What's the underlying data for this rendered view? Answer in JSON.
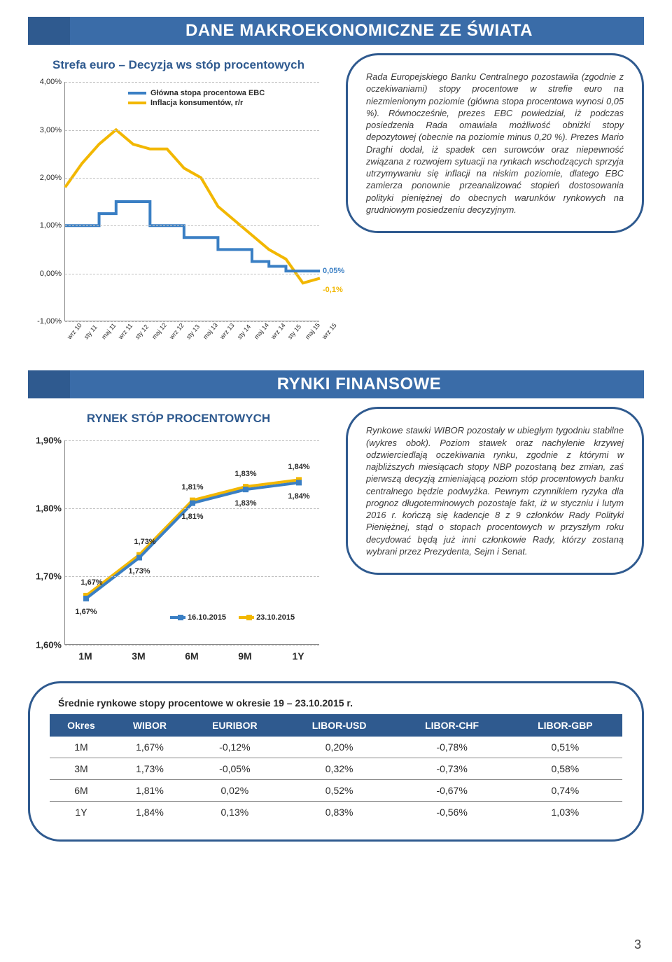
{
  "header1": "DANE MAKROEKONOMICZNE ZE ŚWIATA",
  "chart1_title": "Strefa euro – Decyzja ws stóp procentowych",
  "chart1": {
    "yticks": [
      "4,00%",
      "3,00%",
      "2,00%",
      "1,00%",
      "0,00%",
      "-1,00%"
    ],
    "ymin": -1,
    "ymax": 4,
    "xticks": [
      "wrz 10",
      "sty 11",
      "maj 11",
      "wrz 11",
      "sty 12",
      "maj 12",
      "wrz 12",
      "sty 13",
      "maj 13",
      "wrz 13",
      "sty 14",
      "maj 14",
      "wrz 14",
      "sty 15",
      "maj 15",
      "wrz 15"
    ],
    "legend": [
      {
        "label": "Główna stopa procentowa EBC",
        "color": "#3a7fc4"
      },
      {
        "label": "Inflacja konsumentów, r/r",
        "color": "#f2b700"
      }
    ],
    "series_blue": [
      1.0,
      1.0,
      1.25,
      1.5,
      1.5,
      1.0,
      1.0,
      0.75,
      0.75,
      0.5,
      0.5,
      0.25,
      0.15,
      0.05,
      0.05,
      0.05
    ],
    "series_yellow": [
      1.8,
      2.3,
      2.7,
      3.0,
      2.7,
      2.6,
      2.6,
      2.2,
      2.0,
      1.4,
      1.1,
      0.8,
      0.5,
      0.3,
      -0.2,
      -0.1
    ],
    "end_labels": [
      {
        "text": "0,05%",
        "y": 0.15,
        "color": "#3a7fc4"
      },
      {
        "text": "-0,1%",
        "y": -0.25,
        "color": "#f2b700"
      }
    ],
    "line_color_blue": "#3a7fc4",
    "line_color_yellow": "#f2b700"
  },
  "bubble1": "Rada Europejskiego Banku Centralnego pozostawiła (zgodnie z oczekiwaniami) stopy procentowe w strefie euro na niezmienionym poziomie (główna stopa procentowa wynosi 0,05 %). Równocześnie, prezes EBC powiedział, iż podczas posiedzenia Rada omawiała możliwość obniżki stopy depozytowej (obecnie na poziomie minus 0,20 %). Prezes Mario Draghi dodał, iż spadek cen surowców oraz niepewność związana z rozwojem sytuacji na rynkach wschodzących sprzyja utrzymywaniu się inflacji na niskim poziomie, dlatego EBC zamierza ponownie przeanalizować stopień dostosowania polityki pieniężnej do obecnych warunków rynkowych na grudniowym posiedzeniu decyzyjnym.",
  "header2": "RYNKI FINANSOWE",
  "chart2_title": "RYNEK STÓP PROCENTOWYCH",
  "chart2": {
    "yticks": [
      "1,90%",
      "1,80%",
      "1,70%",
      "1,60%"
    ],
    "ymin": 1.6,
    "ymax": 1.9,
    "xticks": [
      "1M",
      "3M",
      "6M",
      "9M",
      "1Y"
    ],
    "legend": [
      {
        "label": "16.10.2015",
        "color": "#3a7fc4"
      },
      {
        "label": "23.10.2015",
        "color": "#f2b700"
      }
    ],
    "blue": [
      1.67,
      1.73,
      1.81,
      1.83,
      1.84
    ],
    "yellow": [
      1.67,
      1.73,
      1.81,
      1.83,
      1.84
    ],
    "labels_top": [
      "",
      "",
      "1,81%",
      "1,83%",
      "1,84%"
    ],
    "labels_bottom": [
      "1,67%",
      "1,73%",
      "1,81%",
      "1,83%",
      "1,84%"
    ],
    "extra_top": {
      "text": "1,67%",
      "i": 0
    },
    "extra_top2": {
      "text": "1,73%",
      "i": 1
    },
    "line_color_blue": "#3a7fc4",
    "line_color_yellow": "#f2b700",
    "marker_blue": "#3a7fc4",
    "marker_yellow": "#f2b700"
  },
  "bubble2": "Rynkowe stawki WIBOR pozostały w ubiegłym tygodniu stabilne (wykres obok). Poziom stawek oraz nachylenie krzywej odzwierciedlają oczekiwania rynku, zgodnie z którymi w najbliższych miesiącach stopy NBP pozostaną bez zmian, zaś pierwszą decyzją zmieniającą poziom stóp procentowych banku centralnego będzie podwyżka. Pewnym czynnikiem ryzyka dla prognoz długoterminowych pozostaje fakt, iż w styczniu i lutym 2016 r. kończą się kadencje 8 z 9 członków Rady Polityki Pieniężnej, stąd o stopach procentowych w przyszłym roku decydować będą już inni członkowie Rady, którzy zostaną wybrani przez Prezydenta, Sejm i Senat.",
  "table_title": "Średnie rynkowe stopy procentowe w okresie 19 – 23.10.2015 r.",
  "table": {
    "columns": [
      "Okres",
      "WIBOR",
      "EURIBOR",
      "LIBOR-USD",
      "LIBOR-CHF",
      "LIBOR-GBP"
    ],
    "rows": [
      [
        "1M",
        "1,67%",
        "-0,12%",
        "0,20%",
        "-0,78%",
        "0,51%"
      ],
      [
        "3M",
        "1,73%",
        "-0,05%",
        "0,32%",
        "-0,73%",
        "0,58%"
      ],
      [
        "6M",
        "1,81%",
        "0,02%",
        "0,52%",
        "-0,67%",
        "0,74%"
      ],
      [
        "1Y",
        "1,84%",
        "0,13%",
        "0,83%",
        "-0,56%",
        "1,03%"
      ]
    ]
  },
  "page_number": "3"
}
